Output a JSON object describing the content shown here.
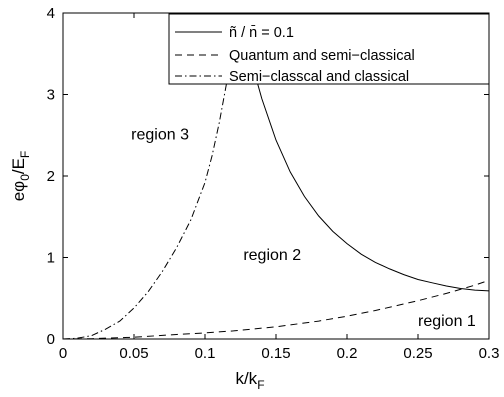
{
  "chart_data": {
    "type": "line",
    "title": "",
    "xlabel": {
      "main": "k/k",
      "sub": "F"
    },
    "ylabel": {
      "main": "eφ",
      "sub0": "0",
      "mid": "/E",
      "sub1": "F"
    },
    "xlim": [
      0,
      0.3
    ],
    "ylim": [
      0,
      4
    ],
    "xticks": [
      {
        "value": 0,
        "label": "0"
      },
      {
        "value": 0.05,
        "label": "0.05"
      },
      {
        "value": 0.1,
        "label": "0.1"
      },
      {
        "value": 0.15,
        "label": "0.15"
      },
      {
        "value": 0.2,
        "label": "0.2"
      },
      {
        "value": 0.25,
        "label": "0.25"
      },
      {
        "value": 0.3,
        "label": "0.3"
      }
    ],
    "yticks": [
      {
        "value": 0,
        "label": "0"
      },
      {
        "value": 1,
        "label": "1"
      },
      {
        "value": 2,
        "label": "2"
      },
      {
        "value": 3,
        "label": "3"
      },
      {
        "value": 4,
        "label": "4"
      }
    ],
    "grid": false,
    "legend_position": "top-right",
    "legend": [
      {
        "label": "ñ / n̄ = 0.1",
        "style": "solid"
      },
      {
        "label": "Quantum and semi−classical",
        "style": "dashed"
      },
      {
        "label": "Semi−classcal and classical",
        "style": "dashdot"
      }
    ],
    "series": [
      {
        "style": "solid",
        "x": [
          0.1254,
          0.13,
          0.135,
          0.14,
          0.15,
          0.16,
          0.17,
          0.18,
          0.19,
          0.2,
          0.21,
          0.22,
          0.23,
          0.24,
          0.25,
          0.26,
          0.27,
          0.28,
          0.29,
          0.3
        ],
        "y": [
          4.0,
          3.63,
          3.26,
          2.95,
          2.44,
          2.05,
          1.75,
          1.51,
          1.32,
          1.17,
          1.04,
          0.94,
          0.86,
          0.79,
          0.73,
          0.69,
          0.65,
          0.62,
          0.6,
          0.59
        ]
      },
      {
        "style": "dashed",
        "x": [
          0,
          0.02,
          0.05,
          0.08,
          0.1,
          0.12,
          0.15,
          0.18,
          0.2,
          0.22,
          0.25,
          0.27,
          0.29,
          0.3
        ],
        "y": [
          0,
          0.004,
          0.022,
          0.055,
          0.075,
          0.1,
          0.15,
          0.22,
          0.28,
          0.35,
          0.47,
          0.56,
          0.66,
          0.72
        ]
      },
      {
        "style": "dashdot",
        "x": [
          0,
          0.01,
          0.02,
          0.03,
          0.04,
          0.05,
          0.06,
          0.07,
          0.08,
          0.09,
          0.1,
          0.105,
          0.11,
          0.115,
          0.12,
          0.123
        ],
        "y": [
          0,
          0.01,
          0.04,
          0.12,
          0.22,
          0.38,
          0.58,
          0.83,
          1.12,
          1.46,
          1.92,
          2.25,
          2.65,
          3.12,
          3.62,
          4.0
        ]
      }
    ],
    "annotations": [
      {
        "text": "region 3",
        "x": 0.048,
        "y": 2.45
      },
      {
        "text": "region 2",
        "x": 0.127,
        "y": 0.97
      },
      {
        "text": "region 1",
        "x": 0.25,
        "y": 0.16
      }
    ]
  }
}
